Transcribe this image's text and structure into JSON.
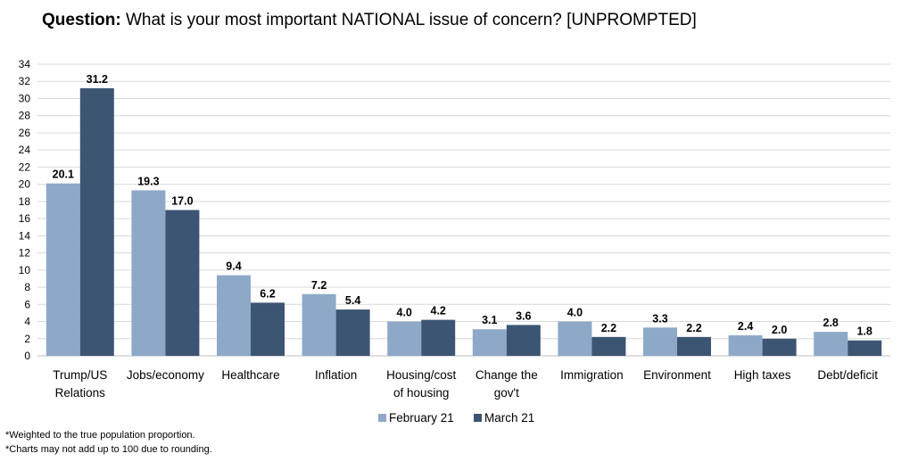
{
  "title": {
    "prefix": "Question:",
    "text": "What is your most important NATIONAL issue of concern? [UNPROMPTED]"
  },
  "chart_data": {
    "type": "bar",
    "categories": [
      [
        "Trump/US",
        "Relations"
      ],
      [
        "Jobs/economy"
      ],
      [
        "Healthcare"
      ],
      [
        "Inflation"
      ],
      [
        "Housing/cost",
        "of housing"
      ],
      [
        "Change the",
        "gov't"
      ],
      [
        "Immigration"
      ],
      [
        "Environment"
      ],
      [
        "High taxes"
      ],
      [
        "Debt/deficit"
      ]
    ],
    "series": [
      {
        "name": "February 21",
        "color": "#8EA9C8",
        "values": [
          20.1,
          19.3,
          9.4,
          7.2,
          4.0,
          3.1,
          4.0,
          3.3,
          2.4,
          2.8
        ],
        "labels": [
          "20.1",
          "19.3",
          "9.4",
          "7.2",
          "4.0",
          "3.1",
          "4.0",
          "3.3",
          "2.4",
          "2.8"
        ]
      },
      {
        "name": "March 21",
        "color": "#3C5573",
        "values": [
          31.2,
          17.0,
          6.2,
          5.4,
          4.2,
          3.6,
          2.2,
          2.2,
          2.0,
          1.8
        ],
        "labels": [
          "31.2",
          "17.0",
          "6.2",
          "5.4",
          "4.2",
          "3.6",
          "2.2",
          "2.2",
          "2.0",
          "1.8"
        ]
      }
    ],
    "ylim": [
      0,
      34
    ],
    "yticks": [
      0,
      2,
      4,
      6,
      8,
      10,
      12,
      14,
      16,
      18,
      20,
      22,
      24,
      26,
      28,
      30,
      32,
      34
    ],
    "grid": true,
    "legend": "bottom-center"
  },
  "footnotes": [
    "*Weighted to the true population proportion.",
    "*Charts may not add up to 100 due to rounding."
  ]
}
